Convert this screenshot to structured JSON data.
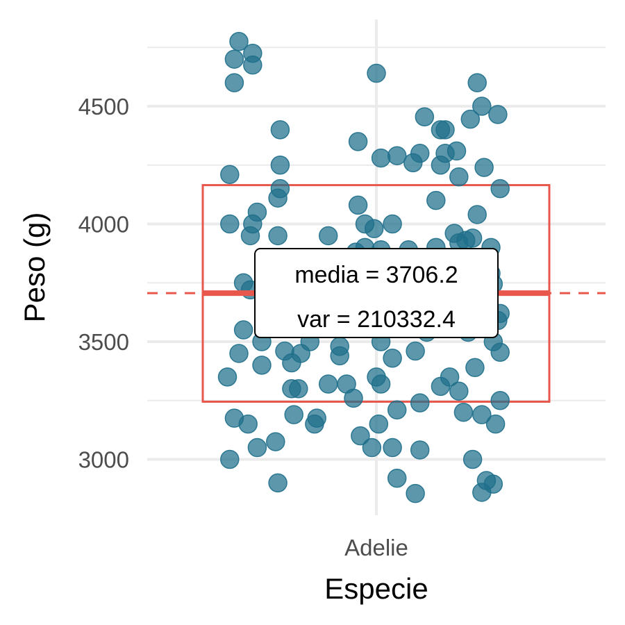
{
  "chart_data": {
    "type": "scatter",
    "xlabel": "Especie",
    "ylabel": "Peso (g)",
    "categories": [
      "Adelie"
    ],
    "ylim": [
      2750,
      4850
    ],
    "yticks": [
      3000,
      3500,
      4000,
      4500
    ],
    "grid": true,
    "colors": {
      "points": "#1f6f8b",
      "summary": "#e8574c",
      "grid": "#ebebeb"
    },
    "mean": 3706.2,
    "box": {
      "lower": 3245,
      "upper": 4165
    },
    "annotation": {
      "line1": "media = 3706.2",
      "line2": "var = 210332.4"
    },
    "points": [
      {
        "x": -0.62,
        "y": 4700
      },
      {
        "x": -0.6,
        "y": 4775
      },
      {
        "x": -0.54,
        "y": 4725
      },
      {
        "x": -0.54,
        "y": 4675
      },
      {
        "x": -0.62,
        "y": 4600
      },
      {
        "x": -0.42,
        "y": 4400
      },
      {
        "x": -0.64,
        "y": 4210
      },
      {
        "x": -0.42,
        "y": 4250
      },
      {
        "x": -0.42,
        "y": 4150
      },
      {
        "x": -0.43,
        "y": 4110
      },
      {
        "x": -0.52,
        "y": 4050
      },
      {
        "x": -0.64,
        "y": 4000
      },
      {
        "x": -0.54,
        "y": 4000
      },
      {
        "x": -0.55,
        "y": 3950
      },
      {
        "x": -0.43,
        "y": 3950
      },
      {
        "x": -0.58,
        "y": 3750
      },
      {
        "x": -0.55,
        "y": 3720
      },
      {
        "x": -0.58,
        "y": 3550
      },
      {
        "x": -0.6,
        "y": 3450
      },
      {
        "x": -0.5,
        "y": 3500
      },
      {
        "x": -0.5,
        "y": 3400
      },
      {
        "x": -0.65,
        "y": 3350
      },
      {
        "x": -0.62,
        "y": 3175
      },
      {
        "x": -0.56,
        "y": 3150
      },
      {
        "x": -0.52,
        "y": 3050
      },
      {
        "x": -0.44,
        "y": 3075
      },
      {
        "x": -0.64,
        "y": 3000
      },
      {
        "x": -0.43,
        "y": 2900
      },
      {
        "x": -0.4,
        "y": 3460
      },
      {
        "x": -0.37,
        "y": 3410
      },
      {
        "x": -0.37,
        "y": 3300
      },
      {
        "x": -0.34,
        "y": 3300
      },
      {
        "x": -0.36,
        "y": 3190
      },
      {
        "x": -0.26,
        "y": 3175
      },
      {
        "x": -0.27,
        "y": 3150
      },
      {
        "x": -0.29,
        "y": 3500
      },
      {
        "x": -0.33,
        "y": 3450
      },
      {
        "x": -0.21,
        "y": 3950
      },
      {
        "x": -0.16,
        "y": 3480
      },
      {
        "x": -0.16,
        "y": 3440
      },
      {
        "x": -0.21,
        "y": 3320
      },
      {
        "x": -0.13,
        "y": 3320
      },
      {
        "x": -0.1,
        "y": 3260
      },
      {
        "x": -0.08,
        "y": 4080
      },
      {
        "x": -0.05,
        "y": 4000
      },
      {
        "x": -0.05,
        "y": 3900
      },
      {
        "x": -0.09,
        "y": 3880
      },
      {
        "x": -0.08,
        "y": 4350
      },
      {
        "x": -0.07,
        "y": 3100
      },
      {
        "x": -0.02,
        "y": 3050
      },
      {
        "x": 0.0,
        "y": 4640
      },
      {
        "x": 0.02,
        "y": 4280
      },
      {
        "x": 0.09,
        "y": 4290
      },
      {
        "x": -0.01,
        "y": 3980
      },
      {
        "x": 0.07,
        "y": 4000
      },
      {
        "x": 0.02,
        "y": 3890
      },
      {
        "x": 0.02,
        "y": 3500
      },
      {
        "x": 0.07,
        "y": 3430
      },
      {
        "x": 0.0,
        "y": 3350
      },
      {
        "x": 0.02,
        "y": 3320
      },
      {
        "x": 0.01,
        "y": 3150
      },
      {
        "x": 0.07,
        "y": 3050
      },
      {
        "x": 0.09,
        "y": 3210
      },
      {
        "x": 0.09,
        "y": 2920
      },
      {
        "x": 0.16,
        "y": 4260
      },
      {
        "x": 0.19,
        "y": 4300
      },
      {
        "x": 0.14,
        "y": 3890
      },
      {
        "x": 0.17,
        "y": 3460
      },
      {
        "x": 0.19,
        "y": 3240
      },
      {
        "x": 0.19,
        "y": 3040
      },
      {
        "x": 0.17,
        "y": 2855
      },
      {
        "x": 0.21,
        "y": 4455
      },
      {
        "x": 0.28,
        "y": 4400
      },
      {
        "x": 0.3,
        "y": 4400
      },
      {
        "x": 0.3,
        "y": 4300
      },
      {
        "x": 0.35,
        "y": 4310
      },
      {
        "x": 0.28,
        "y": 4250
      },
      {
        "x": 0.36,
        "y": 4200
      },
      {
        "x": 0.26,
        "y": 4100
      },
      {
        "x": 0.26,
        "y": 3900
      },
      {
        "x": 0.34,
        "y": 3960
      },
      {
        "x": 0.36,
        "y": 3920
      },
      {
        "x": 0.39,
        "y": 3930
      },
      {
        "x": 0.42,
        "y": 3940
      },
      {
        "x": 0.41,
        "y": 4445
      },
      {
        "x": 0.44,
        "y": 4040
      },
      {
        "x": 0.44,
        "y": 4600
      },
      {
        "x": 0.46,
        "y": 4500
      },
      {
        "x": 0.47,
        "y": 4240
      },
      {
        "x": 0.53,
        "y": 4465
      },
      {
        "x": 0.54,
        "y": 4150
      },
      {
        "x": 0.5,
        "y": 3900
      },
      {
        "x": 0.5,
        "y": 3790
      },
      {
        "x": 0.51,
        "y": 3745
      },
      {
        "x": 0.54,
        "y": 3620
      },
      {
        "x": 0.53,
        "y": 3590
      },
      {
        "x": 0.51,
        "y": 3500
      },
      {
        "x": 0.54,
        "y": 3455
      },
      {
        "x": 0.54,
        "y": 3250
      },
      {
        "x": 0.52,
        "y": 3150
      },
      {
        "x": 0.22,
        "y": 3540
      },
      {
        "x": 0.28,
        "y": 3310
      },
      {
        "x": 0.32,
        "y": 3350
      },
      {
        "x": 0.36,
        "y": 3290
      },
      {
        "x": 0.38,
        "y": 3200
      },
      {
        "x": 0.4,
        "y": 3540
      },
      {
        "x": 0.43,
        "y": 3390
      },
      {
        "x": 0.46,
        "y": 3190
      },
      {
        "x": 0.42,
        "y": 3000
      },
      {
        "x": 0.48,
        "y": 2910
      },
      {
        "x": 0.51,
        "y": 2895
      },
      {
        "x": 0.46,
        "y": 2860
      }
    ]
  }
}
